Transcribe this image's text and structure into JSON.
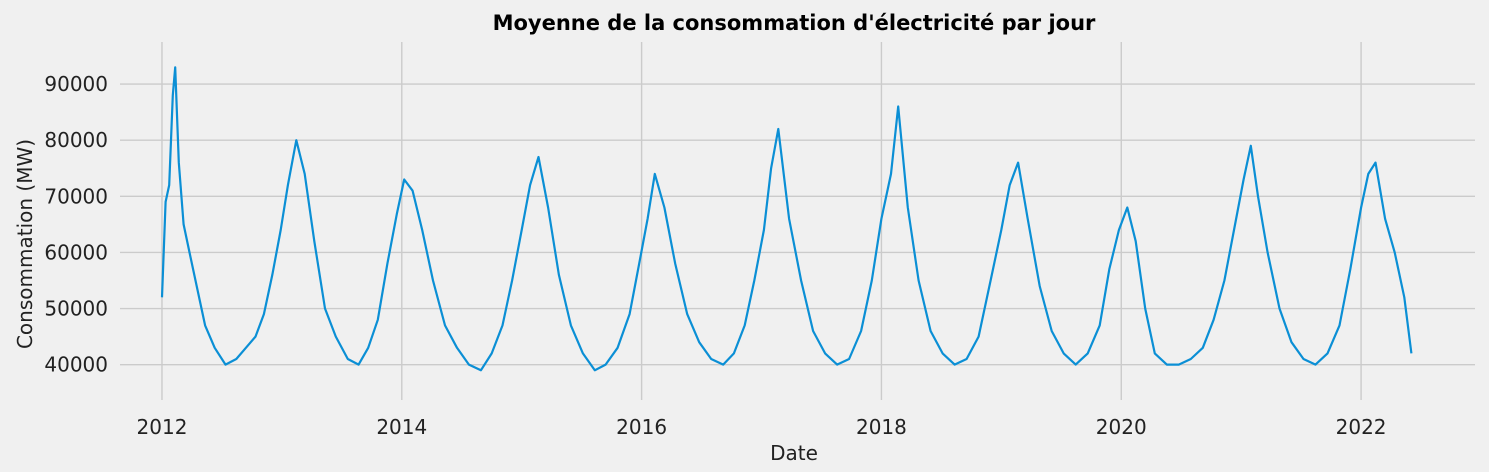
{
  "chart_data": {
    "type": "line",
    "title": "Moyenne de la consommation d'électricité par jour",
    "xlabel": "Date",
    "ylabel": "Consommation (MW)",
    "xlim": [
      2011.65,
      2022.95
    ],
    "ylim": [
      33700,
      97500
    ],
    "grid": true,
    "line_color": "#0b8fd5",
    "background_color": "#f0f0f0",
    "x_ticks": [
      {
        "value": 2012,
        "label": "2012"
      },
      {
        "value": 2014,
        "label": "2014"
      },
      {
        "value": 2016,
        "label": "2016"
      },
      {
        "value": 2018,
        "label": "2018"
      },
      {
        "value": 2020,
        "label": "2020"
      },
      {
        "value": 2022,
        "label": "2022"
      }
    ],
    "y_ticks": [
      {
        "value": 40000,
        "label": "40000"
      },
      {
        "value": 50000,
        "label": "50000"
      },
      {
        "value": 60000,
        "label": "60000"
      },
      {
        "value": 70000,
        "label": "70000"
      },
      {
        "value": 80000,
        "label": "80000"
      },
      {
        "value": 90000,
        "label": "90000"
      }
    ],
    "series": [
      {
        "x": [
          2012.0,
          2012.03,
          2012.06,
          2012.09,
          2012.11,
          2012.14,
          2012.18,
          2012.23,
          2012.29,
          2012.36,
          2012.44,
          2012.53,
          2012.62,
          2012.7,
          2012.78,
          2012.85,
          2012.92,
          2012.99,
          2013.05,
          2013.12,
          2013.19,
          2013.27,
          2013.36,
          2013.45,
          2013.55,
          2013.64,
          2013.72,
          2013.8,
          2013.88,
          2013.96,
          2014.02,
          2014.09,
          2014.17,
          2014.26,
          2014.36,
          2014.46,
          2014.56,
          2014.66,
          2014.75,
          2014.84,
          2014.92,
          2015.0,
          2015.07,
          2015.14,
          2015.22,
          2015.31,
          2015.41,
          2015.51,
          2015.61,
          2015.7,
          2015.8,
          2015.9,
          2015.98,
          2016.05,
          2016.11,
          2016.19,
          2016.28,
          2016.38,
          2016.48,
          2016.58,
          2016.68,
          2016.77,
          2016.86,
          2016.94,
          2017.02,
          2017.08,
          2017.14,
          2017.23,
          2017.33,
          2017.43,
          2017.53,
          2017.63,
          2017.73,
          2017.83,
          2017.92,
          2018.0,
          2018.08,
          2018.14,
          2018.22,
          2018.31,
          2018.41,
          2018.51,
          2018.61,
          2018.71,
          2018.81,
          2018.91,
          2019.0,
          2019.07,
          2019.14,
          2019.22,
          2019.32,
          2019.42,
          2019.52,
          2019.62,
          2019.72,
          2019.82,
          2019.9,
          2019.98,
          2020.05,
          2020.12,
          2020.2,
          2020.28,
          2020.38,
          2020.48,
          2020.58,
          2020.68,
          2020.77,
          2020.86,
          2020.94,
          2021.02,
          2021.08,
          2021.14,
          2021.22,
          2021.32,
          2021.42,
          2021.52,
          2021.62,
          2021.72,
          2021.82,
          2021.91,
          2022.0,
          2022.06,
          2022.12,
          2022.2,
          2022.28,
          2022.36,
          2022.42
        ],
        "y": [
          52000,
          69000,
          72000,
          88000,
          93000,
          76000,
          65000,
          60000,
          54000,
          47000,
          43000,
          40000,
          41000,
          43000,
          45000,
          49000,
          56000,
          64000,
          72000,
          80000,
          74000,
          62000,
          50000,
          45000,
          41000,
          40000,
          43000,
          48000,
          58000,
          67000,
          73000,
          71000,
          64000,
          55000,
          47000,
          43000,
          40000,
          39000,
          42000,
          47000,
          55000,
          64000,
          72000,
          77000,
          68000,
          56000,
          47000,
          42000,
          39000,
          40000,
          43000,
          49000,
          58000,
          66000,
          74000,
          68000,
          58000,
          49000,
          44000,
          41000,
          40000,
          42000,
          47000,
          55000,
          64000,
          75000,
          82000,
          66000,
          55000,
          46000,
          42000,
          40000,
          41000,
          46000,
          55000,
          66000,
          74000,
          86000,
          68000,
          55000,
          46000,
          42000,
          40000,
          41000,
          45000,
          55000,
          64000,
          72000,
          76000,
          66000,
          54000,
          46000,
          42000,
          40000,
          42000,
          47000,
          57000,
          64000,
          68000,
          62000,
          50000,
          42000,
          40000,
          40000,
          41000,
          43000,
          48000,
          55000,
          64000,
          73000,
          79000,
          70000,
          60000,
          50000,
          44000,
          41000,
          40000,
          42000,
          47000,
          57000,
          68000,
          74000,
          76000,
          66000,
          60000,
          52000,
          42000
        ]
      }
    ]
  }
}
